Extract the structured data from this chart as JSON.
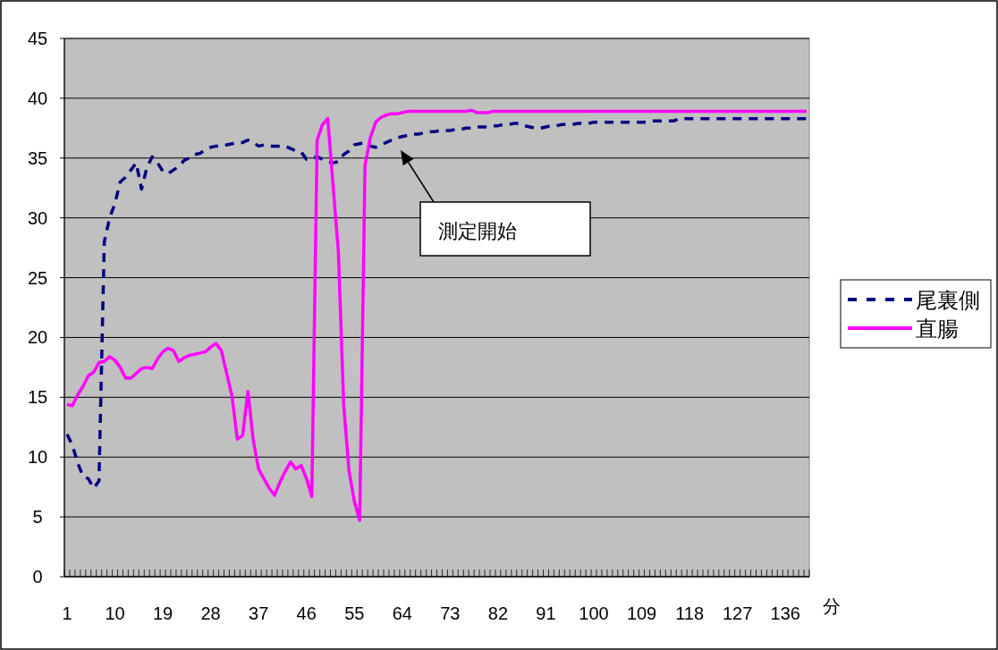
{
  "chart_data": {
    "type": "line",
    "xlabel": "分",
    "categories": [
      "1",
      null,
      null,
      null,
      null,
      null,
      null,
      null,
      null,
      "10",
      null,
      null,
      null,
      null,
      null,
      null,
      null,
      null,
      "19",
      null,
      null,
      null,
      null,
      null,
      null,
      null,
      null,
      "28",
      null,
      null,
      null,
      null,
      null,
      null,
      null,
      null,
      "37",
      null,
      null,
      null,
      null,
      null,
      null,
      null,
      null,
      "46",
      null,
      null,
      null,
      null,
      null,
      null,
      null,
      null,
      "55",
      null,
      null,
      null,
      null,
      null,
      null,
      null,
      null,
      "64",
      null,
      null,
      null,
      null,
      null,
      null,
      null,
      null,
      "73",
      null,
      null,
      null,
      null,
      null,
      null,
      null,
      null,
      "82",
      null,
      null,
      null,
      null,
      null,
      null,
      null,
      null,
      "91",
      null,
      null,
      null,
      null,
      null,
      null,
      null,
      null,
      "100",
      null,
      null,
      null,
      null,
      null,
      null,
      null,
      null,
      "109",
      null,
      null,
      null,
      null,
      null,
      null,
      null,
      null,
      "118",
      null,
      null,
      null,
      null,
      null,
      null,
      null,
      null,
      "127",
      null,
      null,
      null,
      null,
      null,
      null,
      null,
      null,
      "136",
      null,
      null,
      null,
      null
    ],
    "series": [
      {
        "name": "尾裏側",
        "color": "#000080",
        "line_style": "dashed",
        "values": [
          11.9,
          11.0,
          9.5,
          8.4,
          8.2,
          7.4,
          8.0,
          28.0,
          30.0,
          31.2,
          33.0,
          33.4,
          34.0,
          34.6,
          32.4,
          34.2,
          35.1,
          34.6,
          33.9,
          33.7,
          34.0,
          34.3,
          34.8,
          35.0,
          35.3,
          35.4,
          35.7,
          35.9,
          36.0,
          36.0,
          36.1,
          36.2,
          36.3,
          36.3,
          36.5,
          36.3,
          36.0,
          36.1,
          36.0,
          36.0,
          36.0,
          36.0,
          35.8,
          35.6,
          35.5,
          34.9,
          35.0,
          35.1,
          34.9,
          34.7,
          34.6,
          34.7,
          35.3,
          35.6,
          36.1,
          36.2,
          36.3,
          36.0,
          35.9,
          36.1,
          36.3,
          36.5,
          36.7,
          36.8,
          36.9,
          37.0,
          37.0,
          37.1,
          37.2,
          37.2,
          37.3,
          37.3,
          37.3,
          37.4,
          37.4,
          37.5,
          37.5,
          37.6,
          37.6,
          37.6,
          37.7,
          37.7,
          37.8,
          37.8,
          37.9,
          37.9,
          37.7,
          37.6,
          37.5,
          37.5,
          37.6,
          37.7,
          37.7,
          37.8,
          37.8,
          37.8,
          37.9,
          37.9,
          37.9,
          38.0,
          38.0,
          38.0,
          38.0,
          38.0,
          38.0,
          38.0,
          38.0,
          38.0,
          38.0,
          38.0,
          38.1,
          38.1,
          38.1,
          38.1,
          38.1,
          38.3,
          38.3,
          38.3,
          38.3,
          38.3,
          38.3,
          38.3,
          38.3,
          38.3,
          38.3,
          38.3,
          38.3,
          38.3,
          38.3,
          38.3,
          38.3,
          38.3,
          38.3,
          38.3,
          38.3,
          38.3,
          38.3,
          38.3,
          38.3,
          38.3
        ]
      },
      {
        "name": "直腸",
        "color": "#ff00ff",
        "line_style": "solid",
        "values": [
          14.4,
          14.3,
          15.2,
          15.9,
          16.8,
          17.1,
          17.9,
          18.0,
          18.4,
          18.1,
          17.5,
          16.6,
          16.6,
          17.0,
          17.4,
          17.5,
          17.4,
          18.2,
          18.8,
          19.1,
          18.9,
          18.0,
          18.3,
          18.5,
          18.6,
          18.7,
          18.8,
          19.2,
          19.5,
          18.9,
          17.0,
          15.1,
          11.5,
          11.8,
          15.5,
          11.4,
          9.0,
          8.2,
          7.4,
          6.8,
          7.9,
          8.8,
          9.6,
          9.0,
          9.3,
          8.2,
          6.7,
          36.5,
          37.8,
          38.3,
          32.7,
          27.1,
          14.3,
          8.8,
          6.3,
          4.7,
          34.4,
          36.7,
          38.0,
          38.4,
          38.6,
          38.7,
          38.7,
          38.8,
          38.9,
          38.9,
          38.9,
          38.9,
          38.9,
          38.9,
          38.9,
          38.9,
          38.9,
          38.9,
          38.9,
          38.9,
          39.0,
          38.8,
          38.8,
          38.8,
          38.9,
          38.9,
          38.9,
          38.9,
          38.9,
          38.9,
          38.9,
          38.9,
          38.9,
          38.9,
          38.9,
          38.9,
          38.9,
          38.9,
          38.9,
          38.9,
          38.9,
          38.9,
          38.9,
          38.9,
          38.9,
          38.9,
          38.9,
          38.9,
          38.9,
          38.9,
          38.9,
          38.9,
          38.9,
          38.9,
          38.9,
          38.9,
          38.9,
          38.9,
          38.9,
          38.9,
          38.9,
          38.9,
          38.9,
          38.9,
          38.9,
          38.9,
          38.9,
          38.9,
          38.9,
          38.9,
          38.9,
          38.9,
          38.9,
          38.9,
          38.9,
          38.9,
          38.9,
          38.9,
          38.9,
          38.9,
          38.9,
          38.9,
          38.9,
          38.9
        ]
      }
    ],
    "ylim": [
      0,
      45
    ],
    "yticks": [
      0,
      5,
      10,
      15,
      20,
      25,
      30,
      35,
      40,
      45
    ],
    "grid": "y",
    "legend": "right",
    "annotations": [
      "測定開始"
    ]
  }
}
